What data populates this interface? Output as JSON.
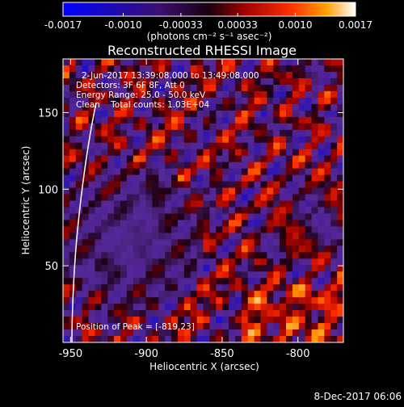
{
  "colorbar": {
    "ticks": [
      "-0.0017",
      "-0.0010",
      "-0.00033",
      "0.00033",
      "0.0010",
      "0.0017"
    ],
    "unit_label": "(photons cm⁻² s⁻¹ asec⁻²)",
    "range": [
      -0.0017,
      0.0017
    ]
  },
  "chart_data": {
    "type": "heatmap",
    "title": "Reconstructed RHESSI Image",
    "xlabel": "Heliocentric X (arcsec)",
    "ylabel": "Heliocentric Y (arcsec)",
    "xlim": [
      -955,
      -770
    ],
    "ylim": [
      0,
      185
    ],
    "x_ticks": [
      "-950",
      "-900",
      "-850",
      "-800"
    ],
    "y_ticks": [
      "50",
      "100",
      "150"
    ],
    "grid": false,
    "solar_limb": true,
    "annotations": {
      "time": "2-Jun-2017 13:39:08.000 to 13:49:08.000",
      "detectors": "Detectors: 3F 6F 8F, Att 0",
      "energy": "Energy Range: 25.0 - 50.0 keV",
      "clean": "Clean    Total counts: 1.03E+04",
      "peak": "Position of Peak = [-819,23]"
    }
  },
  "footer": {
    "date": "8-Dec-2017 06:06"
  }
}
